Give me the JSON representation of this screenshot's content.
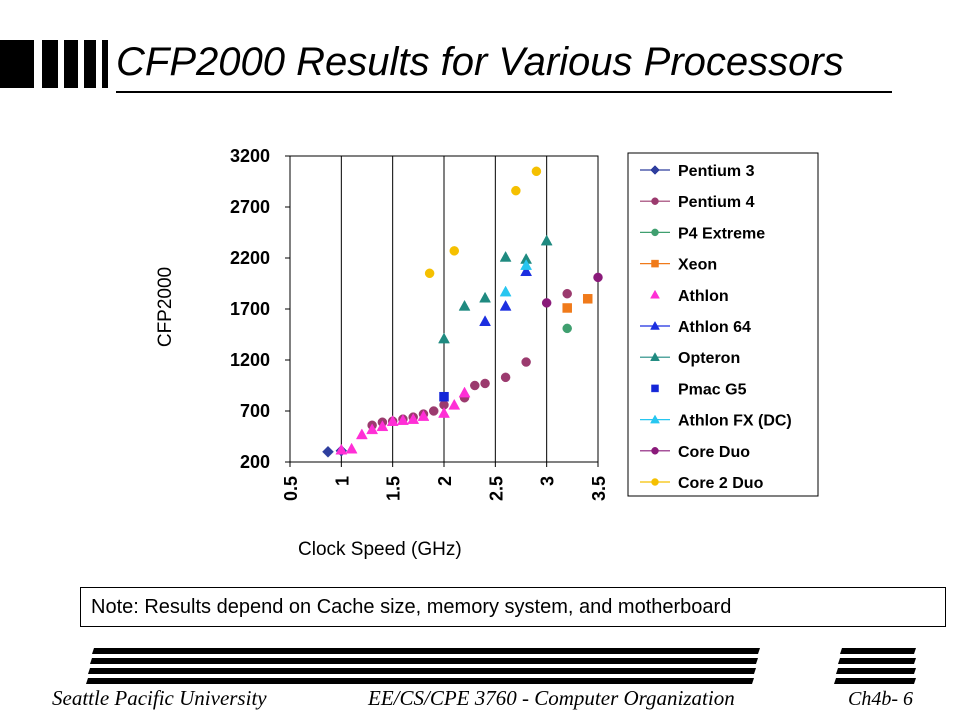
{
  "slide": {
    "title": "CFP2000 Results for Various Processors",
    "note": "Note: Results depend on Cache size, memory system, and motherboard",
    "footer": {
      "left": "Seattle Pacific University",
      "middle": "EE/CS/CPE 3760 - Computer Organization",
      "right": "Ch4b- 6"
    }
  },
  "chart_data": {
    "type": "scatter",
    "title": "",
    "xlabel": "Clock Speed (GHz)",
    "ylabel": "CFP2000",
    "xlim": [
      0.5,
      3.5
    ],
    "ylim": [
      200,
      3200
    ],
    "x_ticks": [
      "0.5",
      "1",
      "1.5",
      "2",
      "2.5",
      "3",
      "3.5"
    ],
    "y_ticks": [
      "200",
      "700",
      "1200",
      "1700",
      "2200",
      "2700",
      "3200"
    ],
    "grid": "vertical",
    "legend_position": "right",
    "series": [
      {
        "name": "Pentium 3",
        "marker": "diamond",
        "color": "#2e3e9e",
        "line": true,
        "points": [
          [
            0.87,
            300
          ],
          [
            1.0,
            310
          ]
        ]
      },
      {
        "name": "Pentium 4",
        "marker": "circle",
        "color": "#9b3a6e",
        "line": true,
        "points": [
          [
            1.3,
            560
          ],
          [
            1.4,
            590
          ],
          [
            1.5,
            600
          ],
          [
            1.6,
            620
          ],
          [
            1.7,
            640
          ],
          [
            1.8,
            670
          ],
          [
            1.9,
            700
          ],
          [
            2.0,
            760
          ],
          [
            2.2,
            830
          ],
          [
            2.3,
            950
          ],
          [
            2.4,
            970
          ],
          [
            2.6,
            1030
          ],
          [
            2.8,
            1180
          ],
          [
            3.2,
            1850
          ]
        ]
      },
      {
        "name": "P4 Extreme",
        "marker": "circle",
        "color": "#3f9f6f",
        "line": true,
        "points": [
          [
            3.2,
            1510
          ]
        ]
      },
      {
        "name": "Xeon",
        "marker": "square",
        "color": "#f07a1a",
        "line": true,
        "points": [
          [
            3.2,
            1710
          ],
          [
            3.4,
            1800
          ]
        ]
      },
      {
        "name": "Athlon",
        "marker": "triangle",
        "color": "#ff2fd6",
        "line": false,
        "points": [
          [
            1.0,
            320
          ],
          [
            1.1,
            330
          ],
          [
            1.2,
            470
          ],
          [
            1.3,
            520
          ],
          [
            1.4,
            550
          ],
          [
            1.5,
            600
          ],
          [
            1.6,
            610
          ],
          [
            1.7,
            620
          ],
          [
            1.8,
            650
          ],
          [
            2.0,
            680
          ],
          [
            2.1,
            760
          ],
          [
            2.2,
            880
          ]
        ]
      },
      {
        "name": "Athlon 64",
        "marker": "triangle",
        "color": "#1c2fe0",
        "line": true,
        "points": [
          [
            2.4,
            1580
          ],
          [
            2.6,
            1730
          ],
          [
            2.8,
            2070
          ]
        ]
      },
      {
        "name": "Opteron",
        "marker": "triangle",
        "color": "#1f8a80",
        "line": true,
        "points": [
          [
            2.0,
            1410
          ],
          [
            2.2,
            1730
          ],
          [
            2.4,
            1810
          ],
          [
            2.6,
            2210
          ],
          [
            2.8,
            2190
          ],
          [
            3.0,
            2370
          ]
        ]
      },
      {
        "name": "Pmac G5",
        "marker": "square",
        "color": "#1426d8",
        "line": false,
        "points": [
          [
            2.0,
            840
          ]
        ]
      },
      {
        "name": "Athlon FX (DC)",
        "marker": "triangle",
        "color": "#27c6f0",
        "line": true,
        "points": [
          [
            2.6,
            1870
          ],
          [
            2.8,
            2130
          ]
        ]
      },
      {
        "name": "Core Duo",
        "marker": "circle",
        "color": "#8a1a7a",
        "line": true,
        "points": [
          [
            3.0,
            1760
          ],
          [
            3.5,
            2010
          ]
        ]
      },
      {
        "name": "Core 2 Duo",
        "marker": "circle",
        "color": "#f5c000",
        "line": true,
        "points": [
          [
            1.86,
            2050
          ],
          [
            2.1,
            2270
          ],
          [
            2.7,
            2860
          ],
          [
            2.9,
            3050
          ]
        ]
      }
    ]
  }
}
